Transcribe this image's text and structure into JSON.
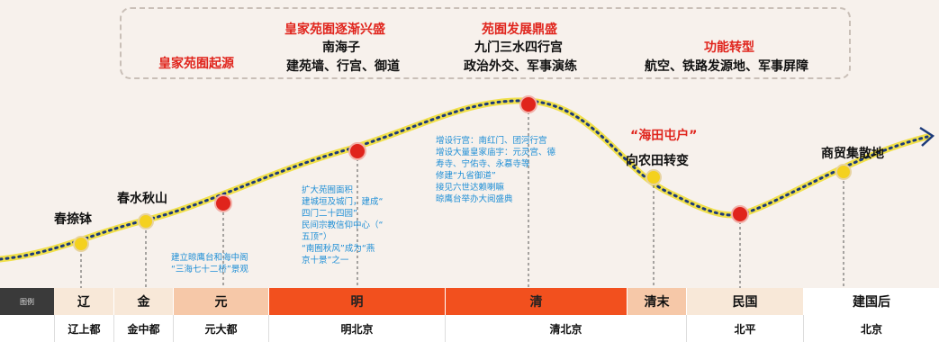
{
  "summary": {
    "headers": [
      {
        "key": "origin",
        "text": "皇家苑囿起源"
      },
      {
        "key": "rise",
        "text": "皇家苑囿逐渐兴盛"
      },
      {
        "key": "peak",
        "text": "苑囿发展鼎盛"
      },
      {
        "key": "transform",
        "text": "功能转型"
      }
    ],
    "rise_lines": [
      "南海子",
      "建苑墙、行宫、御道"
    ],
    "peak_lines": [
      "九门三水四行宫",
      "政治外交、军事演练"
    ],
    "transform_lines": [
      "航空、铁路发源地、军事屏障"
    ]
  },
  "milestones": [
    {
      "key": "chunnabo",
      "text": "春捺钵",
      "color": "black"
    },
    {
      "key": "chunshui",
      "text": "春水秋山",
      "color": "black"
    },
    {
      "key": "haitian",
      "text": "“海田屯户”",
      "color": "red"
    },
    {
      "key": "xiangnong",
      "text": "向农田转变",
      "color": "black"
    },
    {
      "key": "shangmao",
      "text": "商贸集散地",
      "color": "black"
    }
  ],
  "notes": {
    "yuan": [
      "建立晾鹰台和海中阁",
      "“三海七十二桥”景观"
    ],
    "ming": [
      "扩大苑囿面积",
      "建城垣及城门，建成“",
      "四门二十四园”",
      "民间宗教信仰中心（“",
      "五顶”）",
      "“南囿秋风”成为“燕",
      "京十景”之一"
    ],
    "qing": [
      "增设行宫：南红门、团河行宫",
      "增设大量皇家庙宇：元灵宫、德",
      "寿寺、宁佑寺、永慕寺等",
      "修建“九省御道”",
      "接见六世达赖喇嘛",
      "晾鹰台举办大阅盛典"
    ]
  },
  "periods": [
    {
      "key": "legend",
      "label": "图例"
    },
    {
      "key": "liao",
      "label": "辽"
    },
    {
      "key": "jin",
      "label": "金"
    },
    {
      "key": "yuan",
      "label": "元"
    },
    {
      "key": "ming",
      "label": "明"
    },
    {
      "key": "qing",
      "label": "清"
    },
    {
      "key": "qingmo",
      "label": "清末"
    },
    {
      "key": "minguo",
      "label": "民国"
    },
    {
      "key": "jianguo",
      "label": "建国后"
    }
  ],
  "capitals": [
    {
      "key": "liao",
      "label": "辽上都"
    },
    {
      "key": "jin",
      "label": "金中都"
    },
    {
      "key": "yuan",
      "label": "元大都"
    },
    {
      "key": "ming",
      "label": "明北京"
    },
    {
      "key": "qing",
      "label": "清北京"
    },
    {
      "key": "minguo",
      "label": "北平"
    },
    {
      "key": "jianguo",
      "label": "北京"
    }
  ],
  "colors": {
    "accent_red": "#e0241c",
    "note_blue": "#1f8fd6",
    "curve_navy": "#1c3a7a",
    "curve_yellow": "#f1e04a",
    "dot_red": "#e0241c",
    "dot_yellow": "#f4d11e"
  }
}
